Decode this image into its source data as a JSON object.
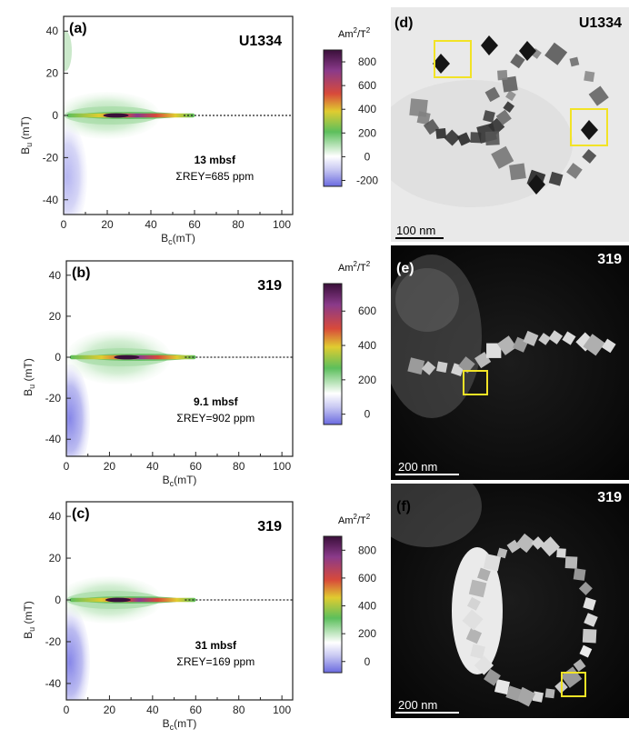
{
  "colors": {
    "cmap": [
      "#6a6ae0",
      "#c6c6f2",
      "#ffffff",
      "#5cbf5c",
      "#e0cc30",
      "#d84a3a",
      "#8a3a8a",
      "#3a0f3a"
    ],
    "axis": "#222222",
    "box": "#f2e326"
  },
  "plots": [
    {
      "letter": "(a)",
      "site": "U1334",
      "depth": "13 mbsf",
      "rey": "ΣREY=685 ppm",
      "ylabel": "Bu (mT)",
      "xlabel": "Bc(mT)",
      "yticks": [
        "40",
        "20",
        "0",
        "-20",
        "-40"
      ],
      "xticks": [
        "0",
        "20",
        "40",
        "60",
        "80",
        "100"
      ],
      "cbar": {
        "title": "Am2/T2",
        "ticks": [
          "800",
          "600",
          "400",
          "200",
          "0",
          "-200"
        ]
      }
    },
    {
      "letter": "(b)",
      "site": "319",
      "depth": "9.1 mbsf",
      "rey": "ΣREY=902 ppm",
      "ylabel": "Bu (mT)",
      "xlabel": "Bc(mT)",
      "yticks": [
        "40",
        "20",
        "0",
        "-20",
        "-40"
      ],
      "xticks": [
        "0",
        "20",
        "40",
        "60",
        "80",
        "100"
      ],
      "cbar": {
        "title": "Am2/T2",
        "ticks": [
          "600",
          "400",
          "200",
          "0"
        ]
      }
    },
    {
      "letter": "(c)",
      "site": "319",
      "depth": "31 mbsf",
      "rey": "ΣREY=169 ppm",
      "ylabel": "Bu (mT)",
      "xlabel": "Bc(mT)",
      "yticks": [
        "40",
        "20",
        "0",
        "-20",
        "-40"
      ],
      "xticks": [
        "0",
        "20",
        "40",
        "60",
        "80",
        "100"
      ],
      "cbar": {
        "title": "Am2/T2",
        "ticks": [
          "800",
          "600",
          "400",
          "200",
          "0"
        ]
      }
    }
  ],
  "images": [
    {
      "letter": "(d)",
      "site": "U1334",
      "scale": "100 nm",
      "style": "bright-field"
    },
    {
      "letter": "(e)",
      "site": "319",
      "scale": "200 nm",
      "style": "dark-field"
    },
    {
      "letter": "(f)",
      "site": "319",
      "scale": "200 nm",
      "style": "dark-field"
    }
  ],
  "chart_data": [
    {
      "type": "heatmap",
      "title": "U1334",
      "xlabel": "Bc(mT)",
      "ylabel": "Bu (mT)",
      "xlim": [
        0,
        105
      ],
      "ylim": [
        -47,
        47
      ],
      "colorbar_label": "Am2/T2",
      "colorbar_range": [
        -250,
        900
      ],
      "peak": {
        "x": 24,
        "y": 0
      },
      "annotations": [
        "13 mbsf",
        "ΣREY=685 ppm"
      ]
    },
    {
      "type": "heatmap",
      "title": "319",
      "xlabel": "Bc(mT)",
      "ylabel": "Bu (mT)",
      "xlim": [
        0,
        105
      ],
      "ylim": [
        -47,
        47
      ],
      "colorbar_label": "Am2/T2",
      "colorbar_range": [
        -60,
        760
      ],
      "peak": {
        "x": 28,
        "y": 0
      },
      "annotations": [
        "9.1 mbsf",
        "ΣREY=902 ppm"
      ]
    },
    {
      "type": "heatmap",
      "title": "319",
      "xlabel": "Bc(mT)",
      "ylabel": "Bu (mT)",
      "xlim": [
        0,
        105
      ],
      "ylim": [
        -47,
        47
      ],
      "colorbar_label": "Am2/T2",
      "colorbar_range": [
        -80,
        900
      ],
      "peak": {
        "x": 24,
        "y": 0
      },
      "annotations": [
        "31 mbsf",
        "ΣREY=169 ppm"
      ]
    }
  ]
}
